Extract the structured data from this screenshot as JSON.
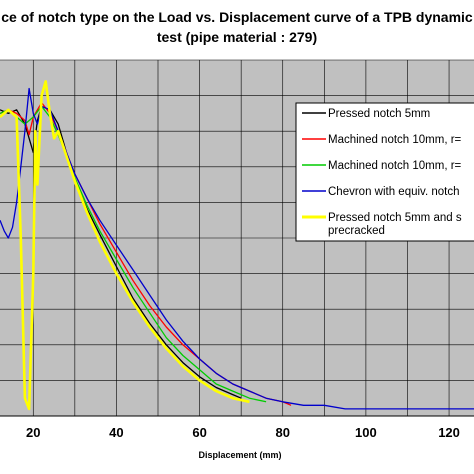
{
  "chart_data": {
    "type": "line",
    "title_line1": "ce of notch type on the Load vs. Displacement curve of a TPB dynamic",
    "title_line2": "test (pipe material : 279)",
    "xlabel": "Displacement (mm)",
    "ylabel": "",
    "xlim": [
      12,
      126
    ],
    "ylim": [
      0,
      100
    ],
    "x_ticks": [
      20,
      40,
      60,
      80,
      100,
      120
    ],
    "grid": true,
    "legend_position": "right",
    "plot_background": "#c0c0c0",
    "series": [
      {
        "name": "Pressed notch 5mm",
        "color": "#000000",
        "x": [
          12,
          14,
          16,
          18,
          19,
          20,
          21,
          22,
          24,
          26,
          28,
          30,
          33,
          36,
          40,
          44,
          48,
          52,
          56,
          60,
          64,
          68,
          70
        ],
        "y": [
          86,
          85,
          86,
          82,
          78,
          74,
          83,
          87,
          86,
          82,
          74,
          66,
          58,
          51,
          42,
          33,
          26,
          20,
          15,
          11,
          8,
          6,
          5
        ]
      },
      {
        "name": "Machined notch 10mm, r=",
        "color": "#ff0000",
        "x": [
          12,
          14,
          16,
          18,
          19,
          20,
          22,
          24,
          26,
          28,
          30,
          33,
          36,
          40,
          44,
          48,
          52,
          56,
          60,
          64,
          68,
          72,
          76,
          80,
          82
        ],
        "y": [
          85,
          86,
          85,
          83,
          79,
          84,
          88,
          85,
          80,
          74,
          68,
          61,
          54,
          46,
          38,
          31,
          25,
          20,
          16,
          12,
          9,
          7,
          5,
          4,
          3
        ]
      },
      {
        "name": "Machined notch 10mm,  r=",
        "color": "#00cc00",
        "x": [
          12,
          14,
          16,
          18,
          20,
          22,
          24,
          26,
          28,
          30,
          33,
          36,
          40,
          44,
          48,
          52,
          56,
          60,
          64,
          68,
          72,
          76
        ],
        "y": [
          85,
          86,
          84,
          82,
          84,
          87,
          84,
          79,
          73,
          67,
          59,
          52,
          44,
          36,
          29,
          22,
          17,
          13,
          9,
          7,
          5,
          4
        ]
      },
      {
        "name": "Chevron with equiv. notch",
        "color": "#0000cc",
        "x": [
          12,
          13,
          14,
          15,
          16,
          17,
          18,
          19,
          20,
          21,
          22,
          24,
          26,
          28,
          30,
          33,
          36,
          40,
          44,
          48,
          52,
          56,
          60,
          64,
          68,
          72,
          76,
          80,
          85,
          90,
          95,
          100,
          105,
          110,
          115,
          120,
          126
        ],
        "y": [
          55,
          52,
          50,
          53,
          60,
          70,
          80,
          92,
          85,
          82,
          87,
          86,
          80,
          74,
          68,
          61,
          55,
          48,
          41,
          34,
          27,
          21,
          16,
          12,
          9,
          7,
          5,
          4,
          3,
          3,
          2,
          2,
          2,
          2,
          2,
          2,
          2
        ]
      },
      {
        "name": "Pressed notch 5mm and s",
        "name_line2": "precracked",
        "color": "#ffff00",
        "x": [
          12,
          14,
          16,
          17,
          18,
          19,
          20,
          20.5,
          21,
          22,
          23,
          24,
          25,
          26,
          28,
          30,
          33,
          36,
          40,
          44,
          48,
          52,
          56,
          60,
          64,
          68,
          72
        ],
        "y": [
          84,
          86,
          84,
          50,
          5,
          2,
          40,
          80,
          65,
          90,
          94,
          85,
          78,
          80,
          73,
          66,
          57,
          49,
          40,
          32,
          25,
          19,
          14,
          10,
          7,
          5,
          4
        ]
      }
    ]
  }
}
